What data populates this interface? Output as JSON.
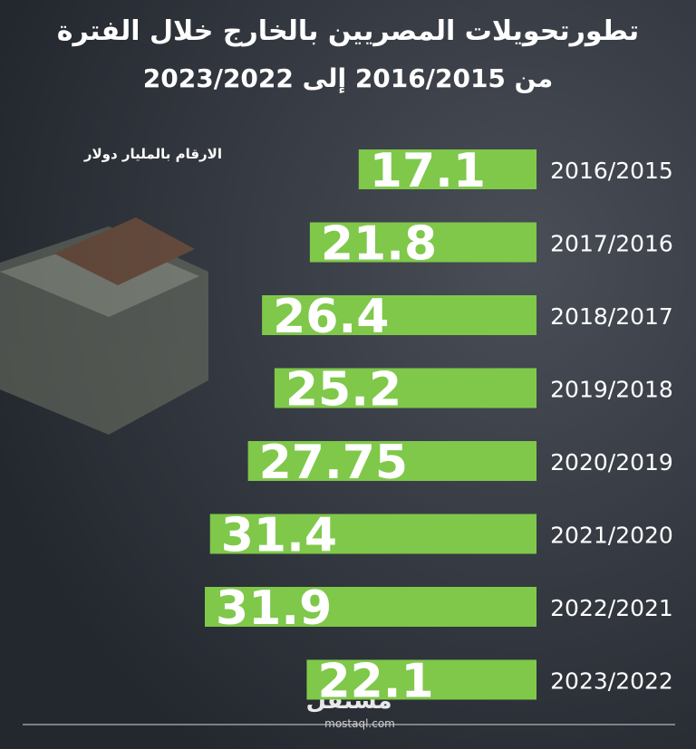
{
  "chart_data": {
    "type": "bar",
    "title": "تطورتحويلات المصريين بالخارج خلال الفترة",
    "subtitle": "من 2016/2015 إلى 2023/2022",
    "unit_note": "الارقام بالمليار دولار",
    "categories": [
      "2016/2015",
      "2017/2016",
      "2018/2017",
      "2019/2018",
      "2020/2019",
      "2021/2020",
      "2022/2021",
      "2023/2022"
    ],
    "values": [
      17.1,
      21.8,
      26.4,
      25.2,
      27.75,
      31.4,
      31.9,
      22.1
    ],
    "color": "#7fc84a",
    "brand": "مستقل",
    "brand_url": "mostaql.com"
  }
}
